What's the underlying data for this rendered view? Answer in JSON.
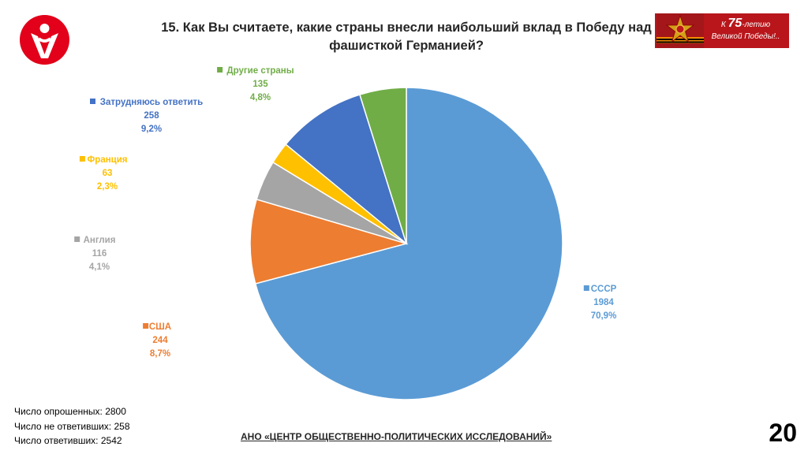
{
  "header": {
    "title_line1": "15. Как Вы считаете, какие страны внесли наибольший вклад в Победу над",
    "title_line2": "фашисткой Германией?"
  },
  "badge": {
    "prefix": "К ",
    "number": "75",
    "suffix": "-летию",
    "line2": "Великой Победы!.."
  },
  "chart_data": {
    "type": "pie",
    "slices": [
      {
        "label": "СССР",
        "value": 1984,
        "percent": "70,9%",
        "color": "#5b9bd5"
      },
      {
        "label": "США",
        "value": 244,
        "percent": "8,7%",
        "color": "#ed7d31"
      },
      {
        "label": "Англия",
        "value": 116,
        "percent": "4,1%",
        "color": "#a5a5a5"
      },
      {
        "label": "Франция",
        "value": 63,
        "percent": "2,3%",
        "color": "#ffc000"
      },
      {
        "label": "Затрудняюсь ответить",
        "value": 258,
        "percent": "9,2%",
        "color": "#4472c4"
      },
      {
        "label": "Другие страны",
        "value": 135,
        "percent": "4,8%",
        "color": "#70ad47"
      }
    ]
  },
  "stats": {
    "line1": "Число опрошенных: 2800",
    "line2": "Число не ответивших: 258",
    "line3": "Число ответивших: 2542"
  },
  "footer": {
    "org": "АНО «ЦЕНТР ОБЩЕСТВЕННО-ПОЛИТИЧЕСКИХ ИССЛЕДОВАНИЙ»"
  },
  "page_number": "20"
}
